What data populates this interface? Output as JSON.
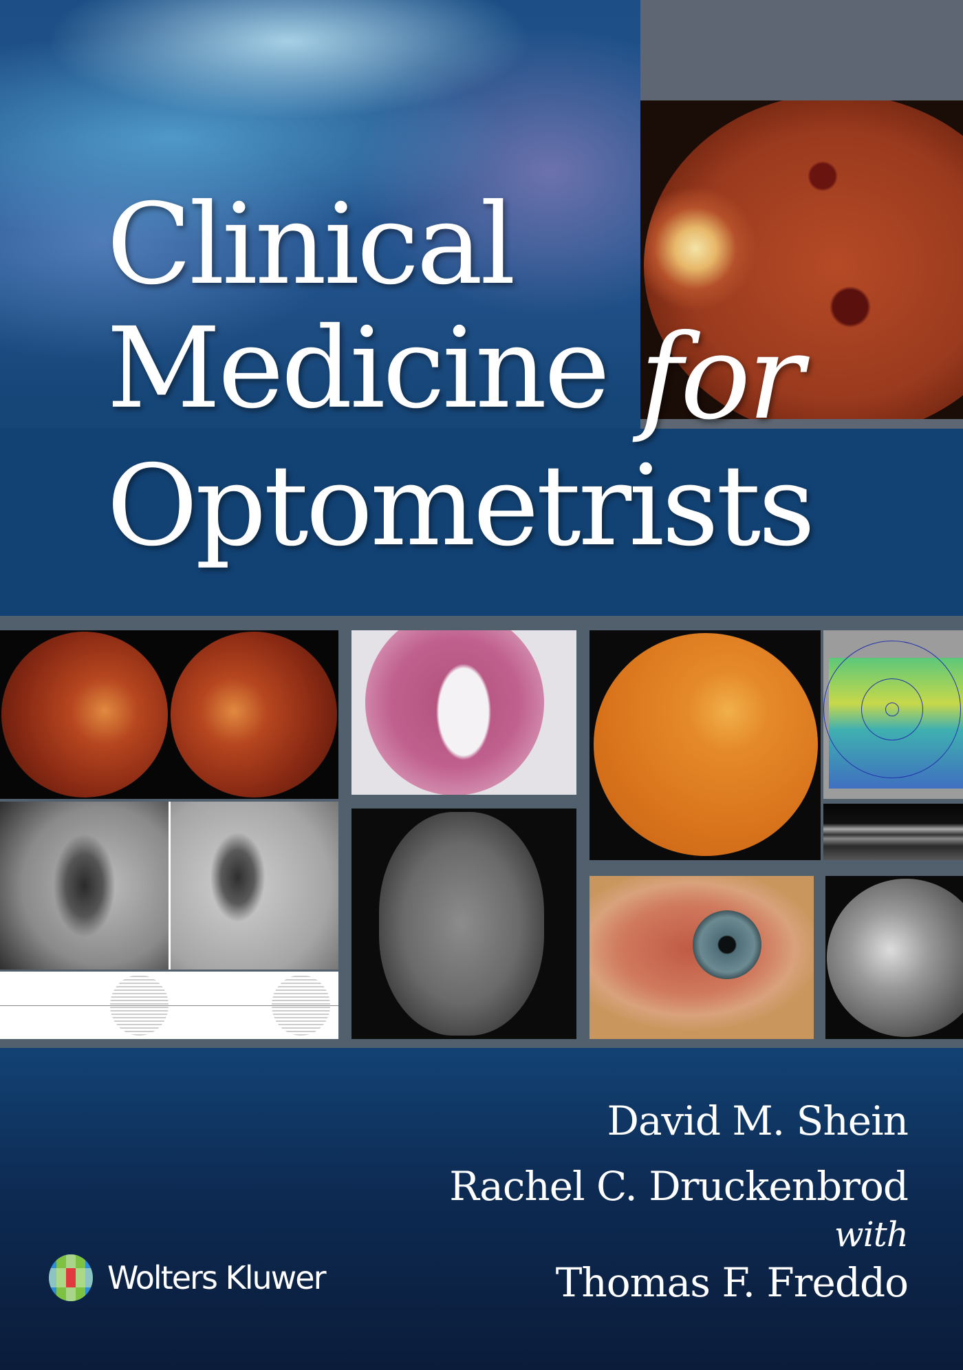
{
  "cover": {
    "title_line1": "Clinical",
    "title_line2": "Medicine",
    "title_for": "for",
    "title_line3": "Optometrists",
    "authors": [
      "David M. Shein",
      "Rachel C. Druckenbrod"
    ],
    "with_label": "with",
    "contributor": "Thomas F. Freddo",
    "publisher": "Wolters Kluwer",
    "colors": {
      "band_blue": "#124274",
      "panel_gray": "#525f6c",
      "bottom_navy": "#0b1c3a"
    }
  }
}
